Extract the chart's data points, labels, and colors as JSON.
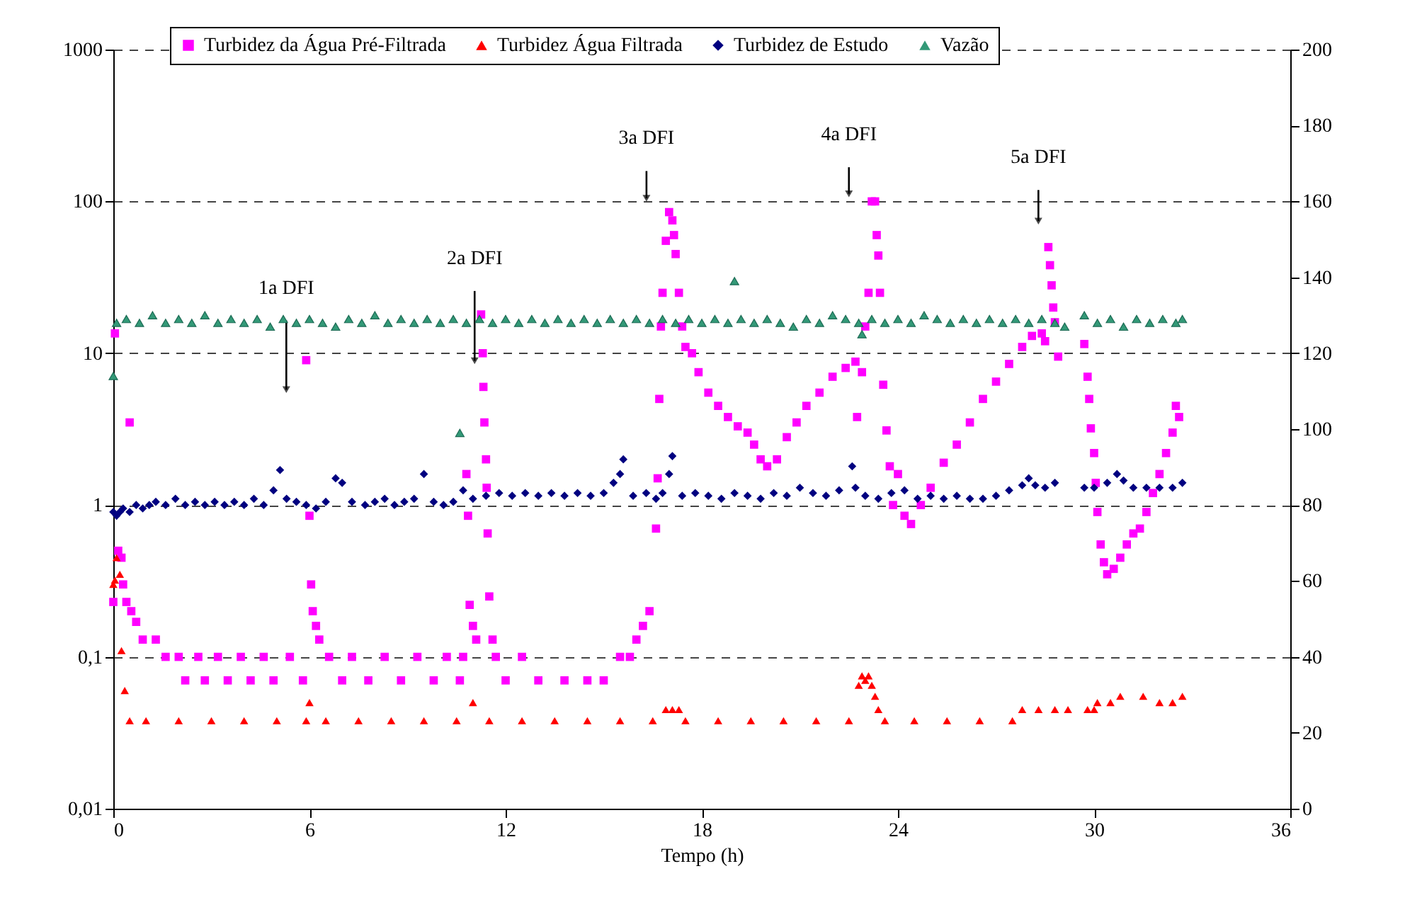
{
  "chart_data": {
    "type": "scatter",
    "xlabel": "Tempo (h)",
    "xlim": [
      0,
      36
    ],
    "xticks": [
      0,
      6,
      12,
      18,
      24,
      30,
      36
    ],
    "ylim": [
      0.01,
      1000
    ],
    "log": true,
    "yticks": [
      {
        "value": 0.01,
        "label": "0,01"
      },
      {
        "value": 0.1,
        "label": "0,1"
      },
      1,
      10,
      100,
      1000
    ],
    "y2lim": [
      0,
      200
    ],
    "y2ticks": [
      0,
      20,
      40,
      60,
      80,
      100,
      120,
      140,
      160,
      180,
      200
    ],
    "grid": "y",
    "legend": "top",
    "annotations": [
      "1a DFI",
      "2a DFI",
      "3a DFI",
      "4a DFI",
      "5a DFI"
    ],
    "series": [
      {
        "name": "Turbidez da Água Pré-Filtrada",
        "color": "#ff00ff",
        "marker": "square",
        "x": [
          0,
          0.05,
          0.15,
          0.25,
          0.3,
          0.4,
          0.5,
          0.55,
          0.7,
          0.9,
          1.3,
          1.6,
          2.0,
          2.2,
          2.6,
          2.8,
          3.2,
          3.5,
          3.9,
          4.2,
          4.6,
          4.9,
          5.4,
          5.8,
          5.9,
          6.0,
          6.05,
          6.1,
          6.2,
          6.3,
          6.6,
          7.0,
          7.3,
          7.8,
          8.3,
          8.8,
          9.3,
          9.8,
          10.2,
          10.6,
          10.7,
          10.8,
          10.85,
          10.9,
          11.0,
          11.1,
          11.25,
          11.3,
          11.32,
          11.35,
          11.4,
          11.42,
          11.45,
          11.5,
          11.6,
          11.7,
          12.0,
          12.5,
          13.0,
          13.8,
          14.5,
          15.0,
          15.5,
          15.8,
          16.0,
          16.2,
          16.4,
          16.6,
          16.65,
          16.7,
          16.75,
          16.8,
          16.9,
          17.0,
          17.1,
          17.15,
          17.2,
          17.3,
          17.4,
          17.5,
          17.7,
          17.9,
          18.2,
          18.5,
          18.8,
          19.1,
          19.4,
          19.6,
          19.8,
          20.0,
          20.3,
          20.6,
          20.9,
          21.2,
          21.6,
          22.0,
          22.4,
          22.7,
          22.75,
          22.9,
          23.0,
          23.1,
          23.2,
          23.3,
          23.35,
          23.4,
          23.45,
          23.55,
          23.65,
          23.75,
          23.85,
          24.0,
          24.2,
          24.4,
          24.7,
          25.0,
          25.4,
          25.8,
          26.2,
          26.6,
          27.0,
          27.4,
          27.8,
          28.1,
          28.4,
          28.5,
          28.6,
          28.65,
          28.7,
          28.75,
          28.8,
          28.9,
          29.7,
          29.8,
          29.85,
          29.9,
          30.0,
          30.05,
          30.1,
          30.2,
          30.3,
          30.4,
          30.6,
          30.8,
          31.0,
          31.2,
          31.4,
          31.6,
          31.8,
          32.0,
          32.2,
          32.4,
          32.5,
          32.6
        ],
        "values": [
          0.23,
          13.5,
          0.5,
          0.45,
          0.3,
          0.23,
          3.5,
          0.2,
          0.17,
          0.13,
          0.13,
          0.1,
          0.1,
          0.07,
          0.1,
          0.07,
          0.1,
          0.07,
          0.1,
          0.07,
          0.1,
          0.07,
          0.1,
          0.07,
          9,
          0.85,
          0.3,
          0.2,
          0.16,
          0.13,
          0.1,
          0.07,
          0.1,
          0.07,
          0.1,
          0.07,
          0.1,
          0.07,
          0.1,
          0.07,
          0.1,
          1.6,
          0.85,
          0.22,
          0.16,
          0.13,
          18,
          10,
          6,
          3.5,
          2,
          1.3,
          0.65,
          0.25,
          0.13,
          0.1,
          0.07,
          0.1,
          0.07,
          0.07,
          0.07,
          0.07,
          0.1,
          0.1,
          0.13,
          0.16,
          0.2,
          0.7,
          1.5,
          5,
          15,
          25,
          55,
          85,
          75,
          60,
          45,
          25,
          15,
          11,
          10,
          7.5,
          5.5,
          4.5,
          3.8,
          3.3,
          3.0,
          2.5,
          2.0,
          1.8,
          2.0,
          2.8,
          3.5,
          4.5,
          5.5,
          7,
          8,
          8.8,
          3.8,
          7.5,
          15,
          25,
          100,
          100,
          60,
          44,
          25,
          6.2,
          3.1,
          1.8,
          1.0,
          1.6,
          0.85,
          0.75,
          1.0,
          1.3,
          1.9,
          2.5,
          3.5,
          5,
          6.5,
          8.5,
          11,
          13,
          13.5,
          12,
          50,
          38,
          28,
          20,
          16,
          9.5,
          11.5,
          7,
          5,
          3.2,
          2.2,
          1.4,
          0.9,
          0.55,
          0.42,
          0.35,
          0.38,
          0.45,
          0.55,
          0.65,
          0.7,
          0.9,
          1.2,
          1.6,
          2.2,
          3,
          4.5,
          3.8
        ]
      },
      {
        "name": "Turbidez Água Filtrada",
        "color": "#ff0000",
        "marker": "triangle",
        "x": [
          0,
          0.05,
          0.1,
          0.2,
          0.25,
          0.35,
          0.5,
          1,
          2,
          3,
          4,
          5,
          5.9,
          6.0,
          6.5,
          7.5,
          8.5,
          9.5,
          10.5,
          11.0,
          11.5,
          12.5,
          13.5,
          14.5,
          15.5,
          16.5,
          16.9,
          17.1,
          17.3,
          17.5,
          18.5,
          19.5,
          20.5,
          21.5,
          22.5,
          22.8,
          22.9,
          23.0,
          23.1,
          23.2,
          23.3,
          23.4,
          23.6,
          24.5,
          25.5,
          26.5,
          27.5,
          27.8,
          28.3,
          28.8,
          29.2,
          29.8,
          30.0,
          30.1,
          30.5,
          30.8,
          31.5,
          32.0,
          32.4,
          32.7
        ],
        "values": [
          0.3,
          0.32,
          0.45,
          0.35,
          0.11,
          0.06,
          0.038,
          0.038,
          0.038,
          0.038,
          0.038,
          0.038,
          0.038,
          0.05,
          0.038,
          0.038,
          0.038,
          0.038,
          0.038,
          0.05,
          0.038,
          0.038,
          0.038,
          0.038,
          0.038,
          0.038,
          0.045,
          0.045,
          0.045,
          0.038,
          0.038,
          0.038,
          0.038,
          0.038,
          0.038,
          0.065,
          0.075,
          0.07,
          0.075,
          0.065,
          0.055,
          0.045,
          0.038,
          0.038,
          0.038,
          0.038,
          0.038,
          0.045,
          0.045,
          0.045,
          0.045,
          0.045,
          0.045,
          0.05,
          0.05,
          0.055,
          0.055,
          0.05,
          0.05,
          0.055
        ]
      },
      {
        "name": "Turbidez de Estudo",
        "color": "#000080",
        "marker": "diamond",
        "x": [
          0,
          0.1,
          0.2,
          0.3,
          0.5,
          0.7,
          0.9,
          1.1,
          1.3,
          1.6,
          1.9,
          2.2,
          2.5,
          2.8,
          3.1,
          3.4,
          3.7,
          4.0,
          4.3,
          4.6,
          4.9,
          5.1,
          5.3,
          5.6,
          5.9,
          6.2,
          6.5,
          6.8,
          7.0,
          7.3,
          7.7,
          8.0,
          8.3,
          8.6,
          8.9,
          9.2,
          9.5,
          9.8,
          10.1,
          10.4,
          10.7,
          11.0,
          11.4,
          11.8,
          12.2,
          12.6,
          13.0,
          13.4,
          13.8,
          14.2,
          14.6,
          15.0,
          15.3,
          15.5,
          15.6,
          15.9,
          16.3,
          16.6,
          16.8,
          17.0,
          17.1,
          17.4,
          17.8,
          18.2,
          18.6,
          19.0,
          19.4,
          19.8,
          20.2,
          20.6,
          21.0,
          21.4,
          21.8,
          22.2,
          22.6,
          22.7,
          23.0,
          23.4,
          23.8,
          24.2,
          24.6,
          25.0,
          25.4,
          25.8,
          26.2,
          26.6,
          27.0,
          27.4,
          27.8,
          28.0,
          28.2,
          28.5,
          28.8,
          29.7,
          30.0,
          30.4,
          30.7,
          30.9,
          31.2,
          31.6,
          32.0,
          32.4,
          32.7
        ],
        "values": [
          0.9,
          0.85,
          0.9,
          0.95,
          0.9,
          1.0,
          0.95,
          1.0,
          1.05,
          1.0,
          1.1,
          1.0,
          1.05,
          1.0,
          1.05,
          1.0,
          1.05,
          1.0,
          1.1,
          1.0,
          1.25,
          1.7,
          1.1,
          1.05,
          1.0,
          0.95,
          1.05,
          1.5,
          1.4,
          1.05,
          1.0,
          1.05,
          1.1,
          1.0,
          1.05,
          1.1,
          1.6,
          1.05,
          1.0,
          1.05,
          1.25,
          1.1,
          1.15,
          1.2,
          1.15,
          1.2,
          1.15,
          1.2,
          1.15,
          1.2,
          1.15,
          1.2,
          1.4,
          1.6,
          2.0,
          1.15,
          1.2,
          1.1,
          1.2,
          1.6,
          2.1,
          1.15,
          1.2,
          1.15,
          1.1,
          1.2,
          1.15,
          1.1,
          1.2,
          1.15,
          1.3,
          1.2,
          1.15,
          1.25,
          1.8,
          1.3,
          1.15,
          1.1,
          1.2,
          1.25,
          1.1,
          1.15,
          1.1,
          1.15,
          1.1,
          1.1,
          1.15,
          1.25,
          1.35,
          1.5,
          1.35,
          1.3,
          1.4,
          1.3,
          1.3,
          1.4,
          1.6,
          1.45,
          1.3,
          1.3,
          1.3,
          1.3,
          1.4
        ]
      },
      {
        "name": "Vazão",
        "color": "#339977",
        "marker": "triangle",
        "axis": "y2",
        "x": [
          0,
          0.1,
          0.4,
          0.8,
          1.2,
          1.6,
          2.0,
          2.4,
          2.8,
          3.2,
          3.6,
          4.0,
          4.4,
          4.8,
          5.2,
          5.6,
          6.0,
          6.4,
          6.8,
          7.2,
          7.6,
          8.0,
          8.4,
          8.8,
          9.2,
          9.6,
          10.0,
          10.4,
          10.6,
          10.8,
          11.2,
          11.6,
          12.0,
          12.4,
          12.8,
          13.2,
          13.6,
          14.0,
          14.4,
          14.8,
          15.2,
          15.6,
          16.0,
          16.4,
          16.8,
          17.2,
          17.6,
          18.0,
          18.4,
          18.8,
          19.0,
          19.2,
          19.6,
          20.0,
          20.4,
          20.8,
          21.2,
          21.6,
          22.0,
          22.4,
          22.8,
          22.9,
          23.2,
          23.6,
          24.0,
          24.4,
          24.8,
          25.2,
          25.6,
          26.0,
          26.4,
          26.8,
          27.2,
          27.6,
          28.0,
          28.4,
          28.8,
          29.1,
          29.7,
          30.1,
          30.5,
          30.9,
          31.3,
          31.7,
          32.1,
          32.5,
          32.7
        ],
        "values": [
          114,
          128,
          129,
          128,
          130,
          128,
          129,
          128,
          130,
          128,
          129,
          128,
          129,
          127,
          129,
          128,
          129,
          128,
          127,
          129,
          128,
          130,
          128,
          129,
          128,
          129,
          128,
          129,
          99,
          128,
          129,
          128,
          129,
          128,
          129,
          128,
          129,
          128,
          129,
          128,
          129,
          128,
          129,
          128,
          129,
          128,
          129,
          128,
          129,
          128,
          139,
          129,
          128,
          129,
          128,
          127,
          129,
          128,
          130,
          129,
          128,
          125,
          129,
          128,
          129,
          128,
          130,
          129,
          128,
          129,
          128,
          129,
          128,
          129,
          128,
          129,
          128,
          127,
          130,
          128,
          129,
          127,
          129,
          128,
          129,
          128,
          129
        ]
      }
    ]
  }
}
